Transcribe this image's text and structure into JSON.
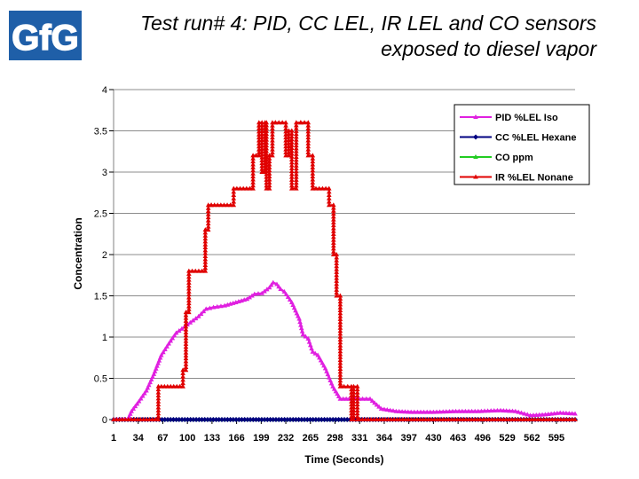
{
  "logo": {
    "text": "GfG",
    "colors": {
      "fill": "#1f5fa8",
      "stroke": "#ffffff"
    }
  },
  "slide_title": "Test run# 4: PID, CC LEL, IR LEL and CO sensors exposed to diesel vapor",
  "chart_data": {
    "type": "line",
    "title": "Test run# 4: PID, CC LEL, IR LEL and CO sensors exposed to diesel vapor",
    "xlabel": "Time (Seconds)",
    "ylabel": "Concentration",
    "x_tick_labels": [
      "1",
      "34",
      "67",
      "100",
      "133",
      "166",
      "199",
      "232",
      "265",
      "298",
      "331",
      "364",
      "397",
      "430",
      "463",
      "496",
      "529",
      "562",
      "595"
    ],
    "xlim": [
      1,
      620
    ],
    "ylim": [
      0,
      4
    ],
    "y_ticks": [
      "0",
      "0.5",
      "1",
      "1.5",
      "2",
      "2.5",
      "3",
      "3.5",
      "4"
    ],
    "y_tick_values": [
      0,
      0.5,
      1,
      1.5,
      2,
      2.5,
      3,
      3.5,
      4
    ],
    "grid": true,
    "legend_position": "top-right",
    "series": [
      {
        "name": "PID %LEL Iso",
        "color": "#e020e0",
        "marker": "triangle",
        "x": [
          1,
          20,
          25,
          35,
          45,
          55,
          65,
          75,
          85,
          100,
          115,
          125,
          135,
          150,
          165,
          180,
          190,
          200,
          210,
          215,
          220,
          225,
          230,
          240,
          250,
          255,
          262,
          268,
          275,
          285,
          295,
          305,
          325,
          335,
          345,
          360,
          380,
          400,
          430,
          460,
          490,
          520,
          540,
          560,
          580,
          600,
          620
        ],
        "y": [
          0,
          0,
          0.1,
          0.22,
          0.35,
          0.55,
          0.78,
          0.92,
          1.05,
          1.15,
          1.25,
          1.34,
          1.36,
          1.38,
          1.42,
          1.46,
          1.52,
          1.53,
          1.6,
          1.66,
          1.64,
          1.58,
          1.55,
          1.42,
          1.22,
          1.03,
          0.98,
          0.82,
          0.78,
          0.62,
          0.4,
          0.25,
          0.25,
          0.25,
          0.25,
          0.13,
          0.1,
          0.09,
          0.09,
          0.1,
          0.1,
          0.11,
          0.1,
          0.05,
          0.06,
          0.08,
          0.07
        ]
      },
      {
        "name": "CC %LEL Hexane",
        "color": "#000080",
        "marker": "diamond",
        "x": [
          1,
          620
        ],
        "y": [
          0,
          0
        ]
      },
      {
        "name": "CO ppm",
        "color": "#22cc22",
        "marker": "triangle",
        "x": [
          1,
          620
        ],
        "y": [
          0,
          0
        ]
      },
      {
        "name": "IR %LEL Nonane",
        "color": "#e00000",
        "marker": "triangle",
        "x": [
          1,
          61,
          61,
          94,
          94,
          98,
          98,
          102,
          102,
          124,
          124,
          128,
          128,
          132,
          132,
          162,
          162,
          188,
          188,
          196,
          196,
          200,
          200,
          204,
          204,
          206,
          206,
          210,
          210,
          214,
          214,
          218,
          218,
          232,
          232,
          236,
          236,
          240,
          240,
          246,
          246,
          252,
          252,
          262,
          262,
          268,
          268,
          290,
          290,
          296,
          296,
          300,
          300,
          305,
          305,
          320,
          320,
          323,
          323,
          328,
          328,
          331,
          331,
          620
        ],
        "y": [
          0,
          0,
          0.4,
          0.4,
          0.6,
          0.6,
          1.3,
          1.3,
          1.8,
          1.8,
          2.3,
          2.3,
          2.6,
          2.6,
          2.6,
          2.6,
          2.8,
          2.8,
          3.2,
          3.2,
          3.6,
          3.6,
          3.0,
          3.0,
          3.6,
          3.6,
          2.8,
          2.8,
          3.2,
          3.2,
          3.6,
          3.6,
          3.6,
          3.6,
          3.2,
          3.2,
          3.5,
          3.5,
          2.8,
          2.8,
          3.6,
          3.6,
          3.6,
          3.6,
          3.2,
          3.2,
          2.8,
          2.8,
          2.6,
          2.6,
          2.0,
          2.0,
          1.5,
          1.5,
          0.4,
          0.4,
          0.0,
          0.0,
          0.4,
          0.4,
          0.0,
          0.0,
          0.0,
          0.0
        ]
      }
    ]
  }
}
